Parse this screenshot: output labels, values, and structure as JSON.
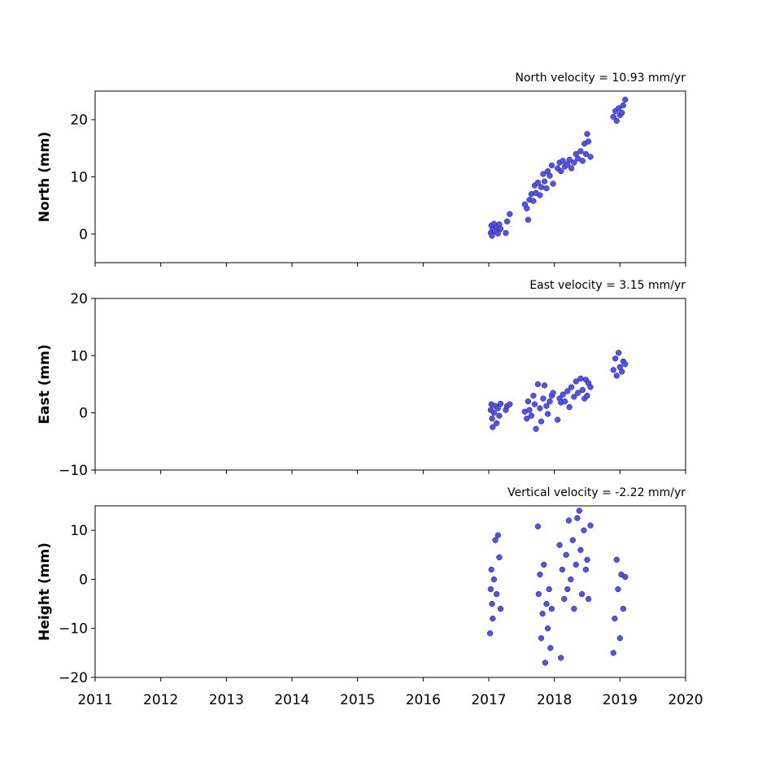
{
  "chart_data": [
    {
      "type": "scatter",
      "title": "North velocity = 10.93 mm/yr",
      "ylabel": "North (mm)",
      "color": "#5151f5",
      "xlim": [
        2011,
        2020
      ],
      "ylim": [
        -5,
        25
      ],
      "yticks": [
        0,
        10,
        20
      ],
      "x": [
        2017.03,
        2017.04,
        2017.05,
        2017.06,
        2017.08,
        2017.1,
        2017.12,
        2017.14,
        2017.16,
        2017.18,
        2017.26,
        2017.28,
        2017.32,
        2017.55,
        2017.58,
        2017.6,
        2017.62,
        2017.65,
        2017.68,
        2017.7,
        2017.72,
        2017.75,
        2017.78,
        2017.8,
        2017.83,
        2017.85,
        2017.88,
        2017.9,
        2017.93,
        2017.96,
        2017.98,
        2018.05,
        2018.08,
        2018.1,
        2018.13,
        2018.16,
        2018.2,
        2018.23,
        2018.26,
        2018.3,
        2018.33,
        2018.36,
        2018.4,
        2018.43,
        2018.46,
        2018.48,
        2018.5,
        2018.52,
        2018.55,
        2018.9,
        2018.93,
        2018.95,
        2018.98,
        2019.0,
        2019.03,
        2019.05,
        2019.08
      ],
      "values": [
        0.2,
        1.5,
        -0.3,
        0.8,
        1.8,
        0.5,
        1.2,
        0.1,
        1.7,
        0.9,
        0.2,
        2.2,
        3.5,
        5.2,
        4.5,
        2.5,
        6.0,
        7.0,
        5.8,
        8.5,
        7.2,
        9.0,
        6.8,
        8.2,
        10.5,
        9.2,
        8.0,
        11.0,
        10.2,
        12.0,
        8.8,
        11.5,
        12.5,
        11.0,
        12.8,
        11.8,
        12.2,
        13.0,
        11.5,
        12.5,
        14.0,
        13.2,
        14.5,
        12.8,
        15.8,
        14.0,
        17.5,
        16.2,
        13.5,
        20.5,
        21.5,
        19.8,
        22.0,
        20.8,
        21.2,
        22.5,
        23.5
      ]
    },
    {
      "type": "scatter",
      "title": "East velocity = 3.15 mm/yr",
      "ylabel": "East (mm)",
      "color": "#5151f5",
      "xlim": [
        2011,
        2020
      ],
      "ylim": [
        -10,
        20
      ],
      "yticks": [
        {
          "value": -10,
          "label": "−10"
        },
        0,
        10,
        20
      ],
      "x": [
        2017.03,
        2017.04,
        2017.05,
        2017.06,
        2017.08,
        2017.1,
        2017.12,
        2017.14,
        2017.16,
        2017.18,
        2017.26,
        2017.28,
        2017.32,
        2017.55,
        2017.58,
        2017.6,
        2017.62,
        2017.65,
        2017.68,
        2017.7,
        2017.72,
        2017.75,
        2017.78,
        2017.8,
        2017.83,
        2017.85,
        2017.88,
        2017.9,
        2017.93,
        2017.96,
        2017.98,
        2018.05,
        2018.08,
        2018.1,
        2018.13,
        2018.16,
        2018.2,
        2018.23,
        2018.26,
        2018.3,
        2018.33,
        2018.36,
        2018.4,
        2018.43,
        2018.46,
        2018.48,
        2018.5,
        2018.52,
        2018.55,
        2018.9,
        2018.93,
        2018.95,
        2018.98,
        2019.0,
        2019.03,
        2019.05,
        2019.08
      ],
      "values": [
        0.5,
        1.5,
        -1.0,
        -2.5,
        0,
        1.2,
        -1.8,
        0.8,
        -0.5,
        1.6,
        0.5,
        1.2,
        1.5,
        0.2,
        -1.0,
        2.0,
        0.5,
        -0.5,
        3.0,
        1.5,
        -2.8,
        5.0,
        0.8,
        -1.5,
        2.5,
        4.8,
        1.2,
        -0.2,
        2.0,
        3.0,
        3.5,
        -1.2,
        2.5,
        1.8,
        3.2,
        2.0,
        3.8,
        1.0,
        4.5,
        2.8,
        5.5,
        3.5,
        6.0,
        4.0,
        2.5,
        5.8,
        3.0,
        5.2,
        4.5,
        7.5,
        9.5,
        6.5,
        10.5,
        8.0,
        7.2,
        9.0,
        8.5
      ]
    },
    {
      "type": "scatter",
      "title": "Vertical velocity = -2.22 mm/yr",
      "ylabel": "Height (mm)",
      "color": "#5151f5",
      "xlim": [
        2011,
        2020
      ],
      "ylim": [
        -20,
        15
      ],
      "yticks": [
        {
          "value": -20,
          "label": "−20"
        },
        {
          "value": -10,
          "label": "−10"
        },
        0,
        10
      ],
      "xticks": [
        2011,
        2012,
        2013,
        2014,
        2015,
        2016,
        2017,
        2018,
        2019,
        2020
      ],
      "x": [
        2017.02,
        2017.03,
        2017.04,
        2017.05,
        2017.06,
        2017.08,
        2017.1,
        2017.12,
        2017.14,
        2017.16,
        2017.18,
        2017.75,
        2017.76,
        2017.78,
        2017.8,
        2017.82,
        2017.84,
        2017.86,
        2017.88,
        2017.9,
        2017.92,
        2017.94,
        2017.96,
        2018.08,
        2018.1,
        2018.12,
        2018.15,
        2018.18,
        2018.2,
        2018.22,
        2018.25,
        2018.28,
        2018.3,
        2018.33,
        2018.35,
        2018.38,
        2018.4,
        2018.42,
        2018.45,
        2018.48,
        2018.5,
        2018.52,
        2018.55,
        2018.9,
        2018.92,
        2018.95,
        2018.97,
        2019.0,
        2019.02,
        2019.05,
        2019.08
      ],
      "values": [
        -11,
        -2,
        2,
        -5,
        -8,
        0,
        8,
        -3,
        9,
        4.5,
        -6,
        10.8,
        -3,
        1,
        -12,
        -7,
        3,
        -17,
        -5,
        -10,
        -2,
        -14,
        -6,
        7,
        -16,
        2,
        -4,
        5,
        -2,
        12,
        0,
        8,
        -6,
        3,
        12.5,
        14,
        6,
        -3,
        10,
        2,
        4,
        -4,
        11,
        -15,
        -8,
        4,
        -2,
        -12,
        1,
        -6,
        0.5
      ]
    }
  ]
}
